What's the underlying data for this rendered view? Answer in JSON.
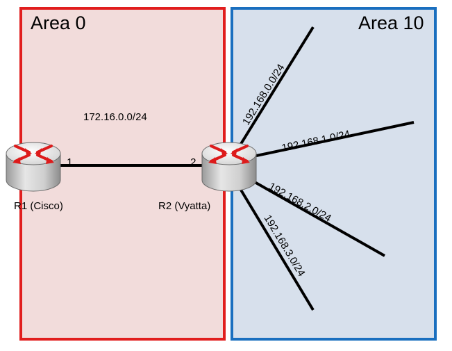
{
  "areas": {
    "area0": {
      "title": "Area 0",
      "fill": "#f2dcdb",
      "border": "#e11e1e"
    },
    "area10": {
      "title": "Area 10",
      "fill": "#d7e0ec",
      "border": "#1a6fbf"
    }
  },
  "link": {
    "subnet": "172.16.0.0/24",
    "r1_host": ".1",
    "r2_host": ".2"
  },
  "routers": [
    {
      "name": "R1 (Cisco)",
      "icon": "router-icon"
    },
    {
      "name": "R2 (Vyatta)",
      "icon": "router-icon"
    }
  ],
  "networks": [
    {
      "label": "192.168.0.0/24"
    },
    {
      "label": "192.168.1.0/24"
    },
    {
      "label": "192.168.2.0/24"
    },
    {
      "label": "192.168.3.0/24"
    }
  ],
  "colors": {
    "router_body": "#c8c8c8",
    "router_arrows": "#dd1b1b",
    "line": "#000000"
  }
}
